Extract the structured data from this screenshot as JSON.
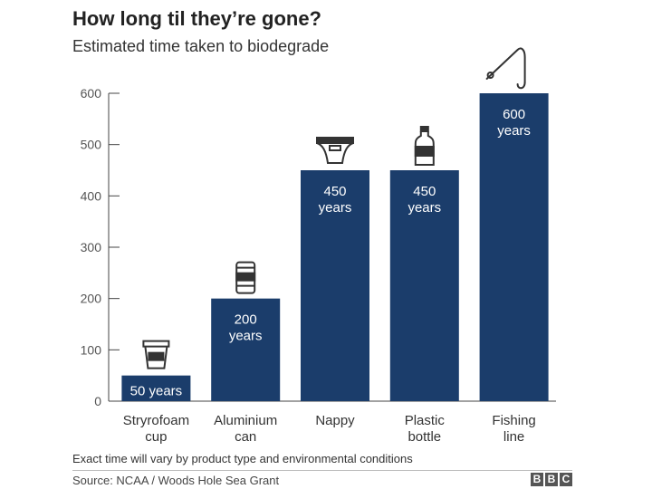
{
  "header": {
    "title": "How long til they’re gone?",
    "subtitle": "Estimated time taken to biodegrade"
  },
  "chart_data": {
    "type": "bar",
    "title": "How long til they’re gone?",
    "subtitle": "Estimated time taken to biodegrade",
    "xlabel": "",
    "ylabel": "",
    "ylim": [
      0,
      600
    ],
    "yticks": [
      0,
      100,
      200,
      300,
      400,
      500,
      600
    ],
    "grid": false,
    "bar_color": "#1b3d6b",
    "bars": [
      {
        "category": [
          "Stryrofoam",
          "cup"
        ],
        "value": 50,
        "label": [
          "50 years"
        ],
        "icon": "cup-icon"
      },
      {
        "category": [
          "Aluminium",
          "can"
        ],
        "value": 200,
        "label": [
          "200",
          "years"
        ],
        "icon": "can-icon"
      },
      {
        "category": [
          "Nappy"
        ],
        "value": 450,
        "label": [
          "450",
          "years"
        ],
        "icon": "nappy-icon"
      },
      {
        "category": [
          "Plastic",
          "bottle"
        ],
        "value": 450,
        "label": [
          "450",
          "years"
        ],
        "icon": "bottle-icon"
      },
      {
        "category": [
          "Fishing",
          "line"
        ],
        "value": 600,
        "label": [
          "600",
          "years"
        ],
        "icon": "fishing-line-icon"
      }
    ]
  },
  "footer": {
    "note": "Exact time will vary by product type and environmental conditions",
    "source": "Source: NCAA / Woods Hole Sea Grant",
    "logo_letters": [
      "B",
      "B",
      "C"
    ]
  }
}
